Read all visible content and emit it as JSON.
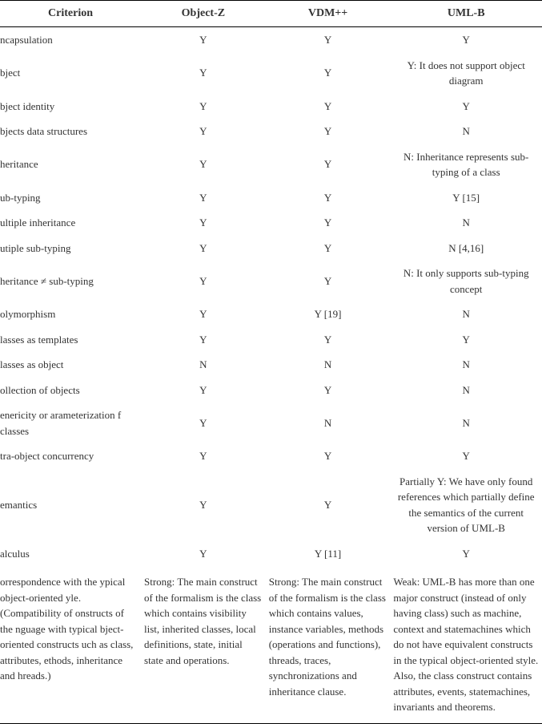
{
  "table": {
    "columns": [
      "Criterion",
      "Object-Z",
      "VDM++",
      "UML-B"
    ],
    "col_widths_pct": [
      26,
      23,
      23,
      28
    ],
    "header_fontsize": 14,
    "body_fontsize": 13,
    "text_color": "#333333",
    "background_color": "#ffffff",
    "border_color": "#000000",
    "rows": [
      {
        "criterion": "ncapsulation",
        "oz": "Y",
        "vdm": "Y",
        "umlb": "Y"
      },
      {
        "criterion": "bject",
        "oz": "Y",
        "vdm": "Y",
        "umlb": "Y: It does not support object diagram"
      },
      {
        "criterion": "bject identity",
        "oz": "Y",
        "vdm": "Y",
        "umlb": "Y"
      },
      {
        "criterion": "bjects data structures",
        "oz": "Y",
        "vdm": "Y",
        "umlb": "N"
      },
      {
        "criterion": "heritance",
        "oz": "Y",
        "vdm": "Y",
        "umlb": "N: Inheritance represents sub-typing of a class"
      },
      {
        "criterion": "ub-typing",
        "oz": "Y",
        "vdm": "Y",
        "umlb": "Y [15]"
      },
      {
        "criterion": "ultiple inheritance",
        "oz": "Y",
        "vdm": "Y",
        "umlb": "N"
      },
      {
        "criterion": "utiple sub-typing",
        "oz": "Y",
        "vdm": "Y",
        "umlb": "N [4,16]"
      },
      {
        "criterion": "heritance ≠ sub-typing",
        "oz": "Y",
        "vdm": "Y",
        "umlb": "N: It only supports sub-typing concept"
      },
      {
        "criterion": "olymorphism",
        "oz": "Y",
        "vdm": "Y [19]",
        "umlb": "N"
      },
      {
        "criterion": "lasses as templates",
        "oz": "Y",
        "vdm": "Y",
        "umlb": "Y"
      },
      {
        "criterion": "lasses as object",
        "oz": "N",
        "vdm": "N",
        "umlb": "N"
      },
      {
        "criterion": "ollection of objects",
        "oz": "Y",
        "vdm": "Y",
        "umlb": "N"
      },
      {
        "criterion": "enericity or arameterization f classes",
        "oz": "Y",
        "vdm": "N",
        "umlb": "N"
      },
      {
        "criterion": "tra-object concurrency",
        "oz": "Y",
        "vdm": "Y",
        "umlb": "Y"
      },
      {
        "criterion": "emantics",
        "oz": "Y",
        "vdm": "Y",
        "umlb": "Partially Y: We have only found references which partially define the semantics of the current version of UML-B"
      },
      {
        "criterion": "alculus",
        "oz": "Y",
        "vdm": "Y [11]",
        "umlb": "Y"
      },
      {
        "criterion": "orrespondence with the ypical object-oriented yle. (Compatibility of onstructs of the nguage with typical bject-oriented constructs uch as class, attributes, ethods, inheritance and hreads.)",
        "oz": "Strong: The main construct of the formalism is the class which contains visibility list, inherited classes, local definitions, state, initial state and operations.",
        "vdm": "Strong: The main construct of the formalism is the class which contains values, instance variables, methods (operations and functions), threads, traces, synchronizations and inheritance clause.",
        "umlb": "Weak: UML-B has more than one major construct (instead of only having class) such as machine, context and statemachines which do not have equivalent constructs in the typical object-oriented style. Also, the class construct contains attributes, events, statemachines, invariants and theorems.",
        "long": true
      }
    ]
  }
}
